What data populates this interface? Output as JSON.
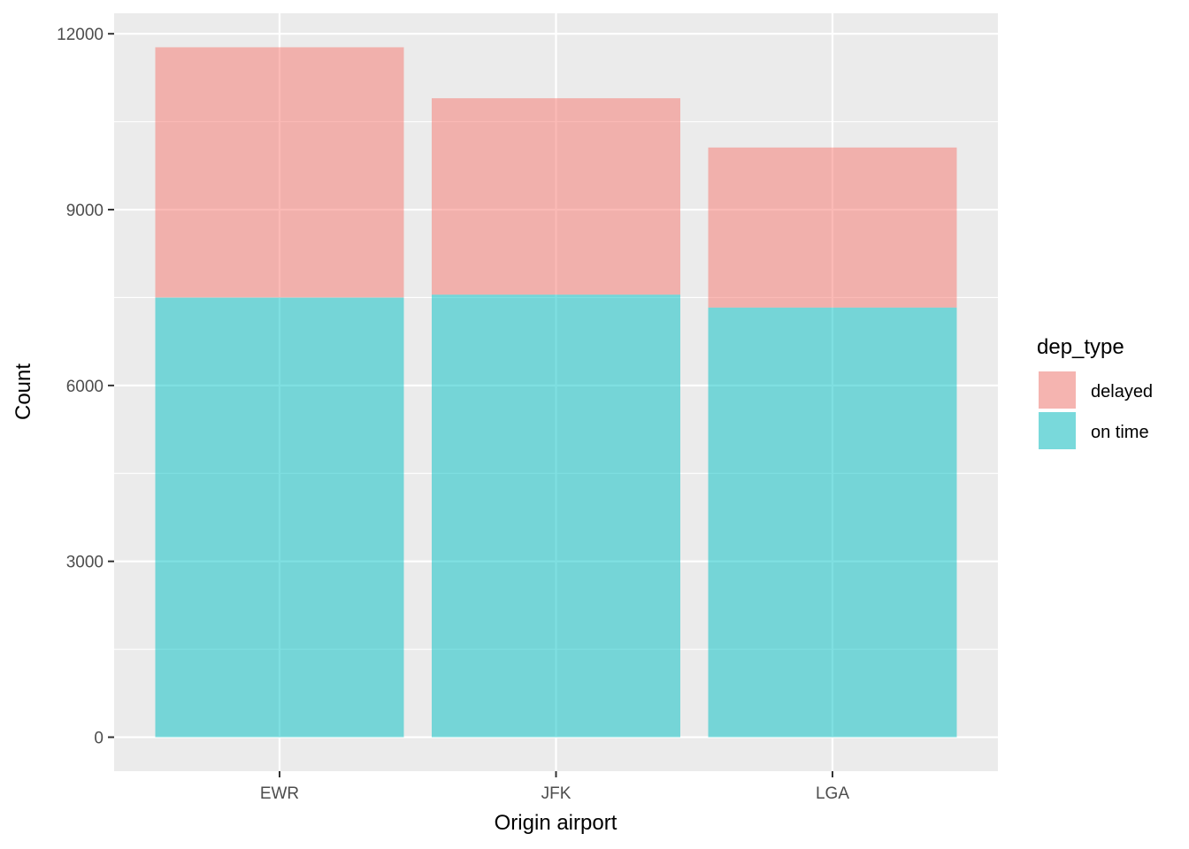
{
  "chart_data": {
    "type": "bar",
    "stacked": true,
    "title": "",
    "xlabel": "Origin airport",
    "ylabel": "Count",
    "categories": [
      "EWR",
      "JFK",
      "LGA"
    ],
    "series": [
      {
        "name": "on time",
        "values": [
          7500,
          7550,
          7330
        ],
        "color": "#00bfc4"
      },
      {
        "name": "delayed",
        "values": [
          4270,
          3350,
          2730
        ],
        "color": "#f8766d"
      }
    ],
    "ylim": [
      -580,
      12350
    ],
    "yticks": [
      0,
      3000,
      6000,
      9000,
      12000
    ],
    "ytick_labels": [
      "0",
      "3000",
      "6000",
      "9000",
      "12000"
    ],
    "grid": true,
    "legend": {
      "title": "dep_type",
      "position": "right",
      "entries": [
        "delayed",
        "on time"
      ]
    },
    "panel_background": "#ebebeb",
    "bar_alpha": 0.5
  }
}
